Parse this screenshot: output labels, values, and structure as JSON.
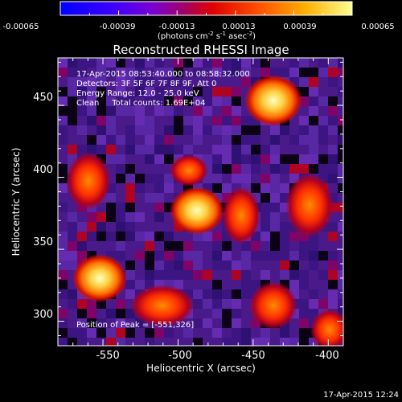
{
  "colorbar": {
    "tick_labels": [
      "-0.00065",
      "-0.00039",
      "-0.00013",
      "0.00013",
      "0.00039",
      "0.00065"
    ],
    "unit_prefix": "(photons cm",
    "unit_exp1": "-2",
    "unit_mid": " s",
    "unit_exp2": "-1",
    "unit_mid2": " asec",
    "unit_exp3": "-2",
    "unit_suffix": ")"
  },
  "title": "Reconstructed RHESSI Image",
  "info_lines": [
    "17-Apr-2015 08:53:40.000 to 08:58:32.000",
    "Detectors: 3F 5F 6F 7F 8F 9F, Att 0",
    "Energy Range: 12.0 - 25.0 keV",
    "Clean     Total counts: 1.69E+04"
  ],
  "peak_label": "Position of Peak = [-551,326]",
  "x_axis": {
    "label": "Heliocentric X (arcsec)",
    "range": [
      -580,
      -390
    ],
    "ticks": [
      "-550",
      "-500",
      "-450",
      "-400"
    ]
  },
  "y_axis": {
    "label": "Heliocentric Y (arcsec)",
    "range": [
      283,
      483
    ],
    "ticks": [
      "300",
      "350",
      "400",
      "450"
    ]
  },
  "timestamp": "17-Apr-2015 12:24",
  "colors": {
    "low": "#0000ff",
    "mid_low": "#8000ff",
    "mid": "#ff0000",
    "mid_high": "#ffa000",
    "high": "#ffff80"
  }
}
